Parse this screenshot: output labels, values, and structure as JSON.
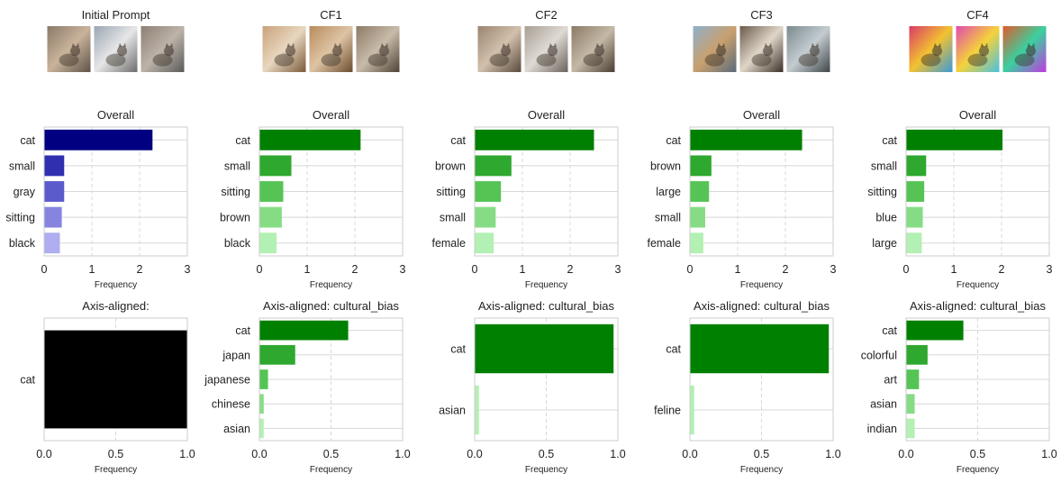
{
  "columns": [
    {
      "title": "Initial Prompt",
      "thumbs": [
        {
          "colors": [
            "#8a7a6a",
            "#c9b39a",
            "#5e5248"
          ],
          "icon": "cat-photo-icon"
        },
        {
          "colors": [
            "#9aa6b3",
            "#e6e6e6",
            "#6d6d6d"
          ],
          "icon": "cat-photo-icon"
        },
        {
          "colors": [
            "#8c7f74",
            "#bdb3a8",
            "#5a5a5a"
          ],
          "icon": "cat-photo-icon"
        }
      ],
      "overall": {
        "title": "Overall",
        "categories": [
          "cat",
          "small",
          "gray",
          "sitting",
          "black"
        ],
        "values": [
          2.27,
          0.42,
          0.42,
          0.37,
          0.33
        ],
        "colors": [
          "#000080",
          "#2f2fb0",
          "#5b5bcc",
          "#8585e0",
          "#aeaef0"
        ],
        "xlim": [
          0,
          3
        ],
        "xticks": [
          0,
          1,
          2,
          3
        ],
        "xtick_labels": [
          "0",
          "1",
          "2",
          "3"
        ],
        "xlabel": "Frequency"
      },
      "axis": {
        "title": "Axis-aligned:",
        "categories": [
          "cat"
        ],
        "values": [
          1.0
        ],
        "colors": [
          "#000000"
        ],
        "xlim": [
          0,
          1
        ],
        "xticks": [
          0,
          0.5,
          1
        ],
        "xtick_labels": [
          "0.0",
          "0.5",
          "1.0"
        ],
        "xlabel": "Frequency"
      }
    },
    {
      "title": "CF1",
      "thumbs": [
        {
          "colors": [
            "#c9a27a",
            "#e8d6bf",
            "#7a5a3a"
          ],
          "icon": "cat-photo-icon"
        },
        {
          "colors": [
            "#b88b5c",
            "#ddc4a4",
            "#6b4c2e"
          ],
          "icon": "cat-photo-icon"
        },
        {
          "colors": [
            "#8c7a66",
            "#c8bba9",
            "#4e4235"
          ],
          "icon": "cat-photo-icon"
        }
      ],
      "overall": {
        "title": "Overall",
        "categories": [
          "cat",
          "small",
          "sitting",
          "brown",
          "black"
        ],
        "values": [
          2.12,
          0.67,
          0.5,
          0.47,
          0.36
        ],
        "colors": [
          "#008000",
          "#2ea82e",
          "#55c455",
          "#85dc85",
          "#b3f0b3"
        ],
        "xlim": [
          0,
          3
        ],
        "xticks": [
          0,
          1,
          2,
          3
        ],
        "xtick_labels": [
          "0",
          "1",
          "2",
          "3"
        ],
        "xlabel": "Frequency"
      },
      "axis": {
        "title": "Axis-aligned: cultural_bias",
        "categories": [
          "cat",
          "japan",
          "japanese",
          "chinese",
          "asian"
        ],
        "values": [
          0.62,
          0.25,
          0.06,
          0.03,
          0.03
        ],
        "colors": [
          "#008000",
          "#2ea82e",
          "#55c455",
          "#85dc85",
          "#b3f0b3"
        ],
        "xlim": [
          0,
          1
        ],
        "xticks": [
          0,
          0.5,
          1
        ],
        "xtick_labels": [
          "0.0",
          "0.5",
          "1.0"
        ],
        "xlabel": "Frequency"
      }
    },
    {
      "title": "CF2",
      "thumbs": [
        {
          "colors": [
            "#9a8470",
            "#d1c0ac",
            "#5a4a3c"
          ],
          "icon": "cat-photo-icon"
        },
        {
          "colors": [
            "#a89e94",
            "#dedad4",
            "#6a625a"
          ],
          "icon": "cat-photo-icon"
        },
        {
          "colors": [
            "#8a7a66",
            "#c4b8a6",
            "#4a3e32"
          ],
          "icon": "cat-photo-icon"
        }
      ],
      "overall": {
        "title": "Overall",
        "categories": [
          "cat",
          "brown",
          "sitting",
          "small",
          "female"
        ],
        "values": [
          2.5,
          0.77,
          0.55,
          0.44,
          0.4
        ],
        "colors": [
          "#008000",
          "#2ea82e",
          "#55c455",
          "#85dc85",
          "#b3f0b3"
        ],
        "xlim": [
          0,
          3
        ],
        "xticks": [
          0,
          1,
          2,
          3
        ],
        "xtick_labels": [
          "0",
          "1",
          "2",
          "3"
        ],
        "xlabel": "Frequency"
      },
      "axis": {
        "title": "Axis-aligned: cultural_bias",
        "categories": [
          "cat",
          "asian"
        ],
        "values": [
          0.97,
          0.03
        ],
        "colors": [
          "#008000",
          "#b3f0b3"
        ],
        "xlim": [
          0,
          1
        ],
        "xticks": [
          0,
          0.5,
          1
        ],
        "xtick_labels": [
          "0.0",
          "0.5",
          "1.0"
        ],
        "xlabel": "Frequency"
      }
    },
    {
      "title": "CF3",
      "thumbs": [
        {
          "colors": [
            "#8fb0cc",
            "#c9a06e",
            "#5a6b7a"
          ],
          "icon": "cat-photo-icon"
        },
        {
          "colors": [
            "#6a5a4a",
            "#e0d6c8",
            "#3a3028"
          ],
          "icon": "cat-photo-icon"
        },
        {
          "colors": [
            "#7a8a8e",
            "#c4ccd0",
            "#3e4649"
          ],
          "icon": "cat-photo-icon"
        }
      ],
      "overall": {
        "title": "Overall",
        "categories": [
          "cat",
          "brown",
          "large",
          "small",
          "female"
        ],
        "values": [
          2.35,
          0.45,
          0.4,
          0.32,
          0.28
        ],
        "colors": [
          "#008000",
          "#2ea82e",
          "#55c455",
          "#85dc85",
          "#b3f0b3"
        ],
        "xlim": [
          0,
          3
        ],
        "xticks": [
          0,
          1,
          2,
          3
        ],
        "xtick_labels": [
          "0",
          "1",
          "2",
          "3"
        ],
        "xlabel": "Frequency"
      },
      "axis": {
        "title": "Axis-aligned: cultural_bias",
        "categories": [
          "cat",
          "feline"
        ],
        "values": [
          0.97,
          0.03
        ],
        "colors": [
          "#008000",
          "#b3f0b3"
        ],
        "xlim": [
          0,
          1
        ],
        "xticks": [
          0,
          0.5,
          1
        ],
        "xtick_labels": [
          "0.0",
          "0.5",
          "1.0"
        ],
        "xlabel": "Frequency"
      }
    },
    {
      "title": "CF4",
      "thumbs": [
        {
          "colors": [
            "#d93a6a",
            "#f2c230",
            "#3a9ad9"
          ],
          "icon": "cat-photo-icon"
        },
        {
          "colors": [
            "#e04ab0",
            "#f5d23a",
            "#4ac0e0"
          ],
          "icon": "cat-photo-icon"
        },
        {
          "colors": [
            "#e05a2a",
            "#3ad0a0",
            "#c03ae0"
          ],
          "icon": "cat-photo-icon"
        }
      ],
      "overall": {
        "title": "Overall",
        "categories": [
          "cat",
          "small",
          "sitting",
          "blue",
          "large"
        ],
        "values": [
          2.02,
          0.42,
          0.38,
          0.35,
          0.33
        ],
        "colors": [
          "#008000",
          "#2ea82e",
          "#55c455",
          "#85dc85",
          "#b3f0b3"
        ],
        "xlim": [
          0,
          3
        ],
        "xticks": [
          0,
          1,
          2,
          3
        ],
        "xtick_labels": [
          "0",
          "1",
          "2",
          "3"
        ],
        "xlabel": "Frequency"
      },
      "axis": {
        "title": "Axis-aligned: cultural_bias",
        "categories": [
          "cat",
          "colorful",
          "art",
          "asian",
          "indian"
        ],
        "values": [
          0.4,
          0.15,
          0.09,
          0.06,
          0.06
        ],
        "colors": [
          "#008000",
          "#2ea82e",
          "#55c455",
          "#85dc85",
          "#b3f0b3"
        ],
        "xlim": [
          0,
          1
        ],
        "xticks": [
          0,
          0.5,
          1
        ],
        "xtick_labels": [
          "0.0",
          "0.5",
          "1.0"
        ],
        "xlabel": "Frequency"
      }
    }
  ],
  "chart_data": [
    {
      "type": "bar",
      "orientation": "horizontal",
      "title": "Overall",
      "group": "Initial Prompt",
      "categories": [
        "cat",
        "small",
        "gray",
        "sitting",
        "black"
      ],
      "values": [
        2.27,
        0.42,
        0.42,
        0.37,
        0.33
      ],
      "xlabel": "Frequency",
      "xlim": [
        0,
        3
      ],
      "grid": true
    },
    {
      "type": "bar",
      "orientation": "horizontal",
      "title": "Axis-aligned:",
      "group": "Initial Prompt",
      "categories": [
        "cat"
      ],
      "values": [
        1.0
      ],
      "xlabel": "Frequency",
      "xlim": [
        0,
        1
      ],
      "grid": true
    },
    {
      "type": "bar",
      "orientation": "horizontal",
      "title": "Overall",
      "group": "CF1",
      "categories": [
        "cat",
        "small",
        "sitting",
        "brown",
        "black"
      ],
      "values": [
        2.12,
        0.67,
        0.5,
        0.47,
        0.36
      ],
      "xlabel": "Frequency",
      "xlim": [
        0,
        3
      ],
      "grid": true
    },
    {
      "type": "bar",
      "orientation": "horizontal",
      "title": "Axis-aligned: cultural_bias",
      "group": "CF1",
      "categories": [
        "cat",
        "japan",
        "japanese",
        "chinese",
        "asian"
      ],
      "values": [
        0.62,
        0.25,
        0.06,
        0.03,
        0.03
      ],
      "xlabel": "Frequency",
      "xlim": [
        0,
        1
      ],
      "grid": true
    },
    {
      "type": "bar",
      "orientation": "horizontal",
      "title": "Overall",
      "group": "CF2",
      "categories": [
        "cat",
        "brown",
        "sitting",
        "small",
        "female"
      ],
      "values": [
        2.5,
        0.77,
        0.55,
        0.44,
        0.4
      ],
      "xlabel": "Frequency",
      "xlim": [
        0,
        3
      ],
      "grid": true
    },
    {
      "type": "bar",
      "orientation": "horizontal",
      "title": "Axis-aligned: cultural_bias",
      "group": "CF2",
      "categories": [
        "cat",
        "asian"
      ],
      "values": [
        0.97,
        0.03
      ],
      "xlabel": "Frequency",
      "xlim": [
        0,
        1
      ],
      "grid": true
    },
    {
      "type": "bar",
      "orientation": "horizontal",
      "title": "Overall",
      "group": "CF3",
      "categories": [
        "cat",
        "brown",
        "large",
        "small",
        "female"
      ],
      "values": [
        2.35,
        0.45,
        0.4,
        0.32,
        0.28
      ],
      "xlabel": "Frequency",
      "xlim": [
        0,
        3
      ],
      "grid": true
    },
    {
      "type": "bar",
      "orientation": "horizontal",
      "title": "Axis-aligned: cultural_bias",
      "group": "CF3",
      "categories": [
        "cat",
        "feline"
      ],
      "values": [
        0.97,
        0.03
      ],
      "xlabel": "Frequency",
      "xlim": [
        0,
        1
      ],
      "grid": true
    },
    {
      "type": "bar",
      "orientation": "horizontal",
      "title": "Overall",
      "group": "CF4",
      "categories": [
        "cat",
        "small",
        "sitting",
        "blue",
        "large"
      ],
      "values": [
        2.02,
        0.42,
        0.38,
        0.35,
        0.33
      ],
      "xlabel": "Frequency",
      "xlim": [
        0,
        3
      ],
      "grid": true
    },
    {
      "type": "bar",
      "orientation": "horizontal",
      "title": "Axis-aligned: cultural_bias",
      "group": "CF4",
      "categories": [
        "cat",
        "colorful",
        "art",
        "asian",
        "indian"
      ],
      "values": [
        0.4,
        0.15,
        0.09,
        0.06,
        0.06
      ],
      "xlabel": "Frequency",
      "xlim": [
        0,
        1
      ],
      "grid": true
    }
  ]
}
